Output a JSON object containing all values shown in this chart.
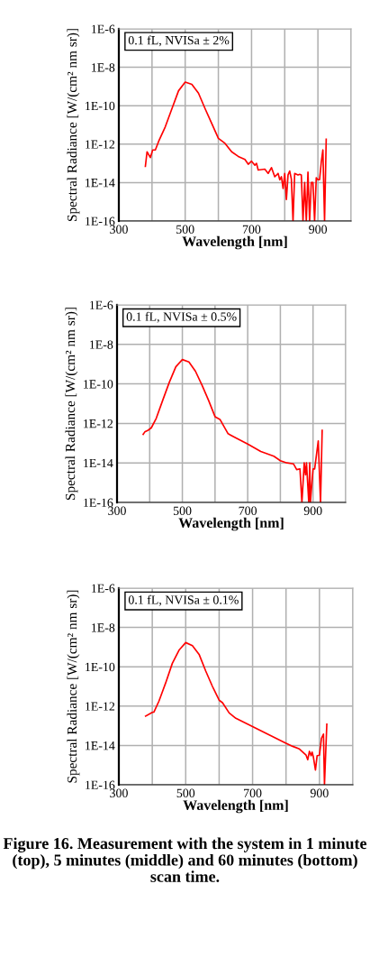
{
  "chart_data": [
    {
      "type": "line",
      "xlabel": "Wavelength [nm]",
      "ylabel": "Spectral Radiance [W/(cm² nm sr)]",
      "annotations": [
        "0.1 fL, NVISa ± 2%"
      ],
      "log": "y",
      "grid": true,
      "xlim": [
        300,
        1000
      ],
      "ylim": [
        1e-16,
        1e-06
      ],
      "xticks": [
        300,
        {
          "value": 400,
          "label": null
        },
        500,
        {
          "value": 600,
          "label": null
        },
        700,
        {
          "value": 800,
          "label": null
        },
        900,
        {
          "value": 1000,
          "label": null
        }
      ],
      "yticks": [
        {
          "value": 1e-16,
          "label": "1E-16"
        },
        {
          "value": 1e-14,
          "label": "1E-14"
        },
        {
          "value": 1e-12,
          "label": "1E-12"
        },
        {
          "value": 1e-10,
          "label": "1E-10"
        },
        {
          "value": 1e-08,
          "label": "1E-8"
        },
        {
          "value": 1e-06,
          "label": "1E-6"
        }
      ],
      "series": [
        {
          "color": "#ff0000",
          "x": [
            380,
            385,
            395,
            402,
            410,
            420,
            440,
            460,
            480,
            500,
            520,
            540,
            560,
            580,
            600,
            620,
            640,
            660,
            680,
            690,
            700,
            710,
            715,
            720,
            740,
            750,
            760,
            770,
            780,
            785,
            790,
            795,
            800,
            805,
            810,
            815,
            820,
            825,
            830,
            840,
            845,
            850,
            855,
            860,
            865,
            870,
            875,
            880,
            885,
            890,
            895,
            900,
            905,
            910,
            915,
            920,
            925
          ],
          "values": [
            7e-14,
            4e-13,
            2e-13,
            5e-13,
            5e-13,
            1.4e-12,
            8e-12,
            7e-11,
            6e-10,
            1.7e-09,
            1.3e-09,
            4.5e-10,
            7e-11,
            1.2e-11,
            2e-12,
            1.1e-12,
            4e-13,
            2.3e-13,
            1.6e-13,
            9e-14,
            1.3e-13,
            8e-14,
            1e-13,
            4.5e-14,
            5e-14,
            3e-14,
            6e-14,
            2e-14,
            3e-14,
            1.4e-14,
            2e-14,
            5e-15,
            3e-14,
            1.3e-15,
            2.5e-14,
            4e-14,
            1.5e-14,
            1e-16,
            3e-14,
            2.5e-14,
            2.7e-14,
            2.5e-14,
            1e-16,
            1e-14,
            1e-16,
            3.5e-14,
            1e-16,
            1e-14,
            1e-14,
            1e-16,
            1.8e-14,
            1.4e-14,
            1.4e-14,
            1.1e-13,
            5e-13,
            1e-16,
            1.8e-12
          ]
        }
      ]
    },
    {
      "type": "line",
      "xlabel": "Wavelength [nm]",
      "ylabel": "Spectral Radiance [W/(cm² nm sr)]",
      "annotations": [
        "0.1 fL, NVISa ± 0.5%"
      ],
      "log": "y",
      "grid": true,
      "xlim": [
        300,
        1000
      ],
      "ylim": [
        1e-16,
        1e-06
      ],
      "xticks": [
        300,
        {
          "value": 400,
          "label": null
        },
        500,
        {
          "value": 600,
          "label": null
        },
        700,
        {
          "value": 800,
          "label": null
        },
        900,
        {
          "value": 1000,
          "label": null
        }
      ],
      "yticks": [
        {
          "value": 1e-16,
          "label": "1E-16"
        },
        {
          "value": 1e-14,
          "label": "1E-14"
        },
        {
          "value": 1e-12,
          "label": "1E-12"
        },
        {
          "value": 1e-10,
          "label": "1E-10"
        },
        {
          "value": 1e-08,
          "label": "1E-8"
        },
        {
          "value": 1e-06,
          "label": "1E-6"
        }
      ],
      "series": [
        {
          "color": "#ff0000",
          "x": [
            380,
            385,
            395,
            405,
            420,
            440,
            460,
            480,
            500,
            520,
            540,
            560,
            580,
            600,
            615,
            640,
            660,
            700,
            740,
            780,
            800,
            820,
            840,
            850,
            860,
            866,
            873,
            877,
            880,
            887,
            890,
            892,
            900,
            905,
            916,
            923,
            928
          ],
          "values": [
            2.8e-13,
            3.7e-13,
            4.5e-13,
            6e-13,
            1.8e-12,
            1.5e-11,
            1.2e-10,
            7.4e-10,
            1.7e-09,
            1.3e-09,
            4.4e-10,
            8.7e-11,
            1.5e-11,
            2.2e-12,
            1.6e-12,
            3e-13,
            2e-13,
            9e-14,
            3.8e-14,
            2.2e-14,
            1.3e-14,
            1e-14,
            9e-15,
            4.6e-15,
            5e-15,
            1e-16,
            1e-14,
            2.5e-15,
            1e-14,
            1e-16,
            1e-14,
            1e-16,
            5e-15,
            5e-15,
            1.3e-13,
            1e-16,
            4.5e-13
          ]
        }
      ]
    },
    {
      "type": "line",
      "xlabel": "Wavelength [nm]",
      "ylabel": "Spectral Radiance [W/(cm² nm sr)]",
      "annotations": [
        "0.1 fL, NVISa ± 0.1%",
        "Figure 16. Measurement with the system in 1 minute (top), 5 minutes (middle) and 60 minutes (bottom) scan time."
      ],
      "log": "y",
      "grid": true,
      "xlim": [
        300,
        1000
      ],
      "ylim": [
        1e-16,
        1e-06
      ],
      "xticks": [
        300,
        {
          "value": 400,
          "label": null
        },
        500,
        {
          "value": 600,
          "label": null
        },
        700,
        {
          "value": 800,
          "label": null
        },
        900,
        {
          "value": 1000,
          "label": null
        }
      ],
      "yticks": [
        {
          "value": 1e-16,
          "label": "1E-16"
        },
        {
          "value": 1e-14,
          "label": "1E-14"
        },
        {
          "value": 1e-12,
          "label": "1E-12"
        },
        {
          "value": 1e-10,
          "label": "1E-10"
        },
        {
          "value": 1e-08,
          "label": "1E-8"
        },
        {
          "value": 1e-06,
          "label": "1E-6"
        }
      ],
      "series": [
        {
          "color": "#ff0000",
          "x": [
            380,
            400,
            405,
            420,
            440,
            460,
            480,
            500,
            520,
            540,
            560,
            580,
            600,
            610,
            630,
            650,
            700,
            750,
            800,
            820,
            840,
            860,
            865,
            870,
            875,
            878,
            882,
            888,
            893,
            900,
            906,
            912,
            915,
            922
          ],
          "values": [
            3.1e-13,
            4.8e-13,
            5e-13,
            1.8e-12,
            1.5e-11,
            1.5e-10,
            7e-10,
            1.7e-09,
            1.2e-09,
            4.3e-10,
            6e-11,
            1e-11,
            2e-12,
            1.5e-12,
            4.5e-13,
            2.4e-13,
            9e-14,
            3.4e-14,
            1.3e-14,
            9e-15,
            6.6e-15,
            3.2e-15,
            1.9e-15,
            5e-15,
            3e-15,
            4.6e-15,
            2.5e-15,
            5.6e-16,
            3e-15,
            3.2e-15,
            2.3e-14,
            3.8e-14,
            1e-16,
            1.2e-13
          ]
        }
      ]
    }
  ]
}
